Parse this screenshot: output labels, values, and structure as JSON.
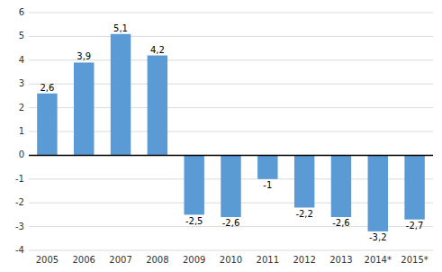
{
  "chart_data": {
    "type": "bar",
    "categories": [
      "2005",
      "2006",
      "2007",
      "2008",
      "2009",
      "2010",
      "2011",
      "2012",
      "2013",
      "2014*",
      "2015*"
    ],
    "values": [
      2.6,
      3.9,
      5.1,
      4.2,
      -2.5,
      -2.6,
      -1.0,
      -2.2,
      -2.6,
      -3.2,
      -2.7
    ],
    "value_labels": [
      "2,6",
      "3,9",
      "5,1",
      "4,2",
      "-2,5",
      "-2,6",
      "-1",
      "-2,2",
      "-2,6",
      "-3,2",
      "-2,7"
    ],
    "data_labels": true,
    "color": "#5B9BD5",
    "ylim": [
      -4,
      6
    ],
    "yticks": [
      -4,
      -3,
      -2,
      -1,
      0,
      1,
      2,
      3,
      4,
      5,
      6
    ],
    "grid": true
  }
}
